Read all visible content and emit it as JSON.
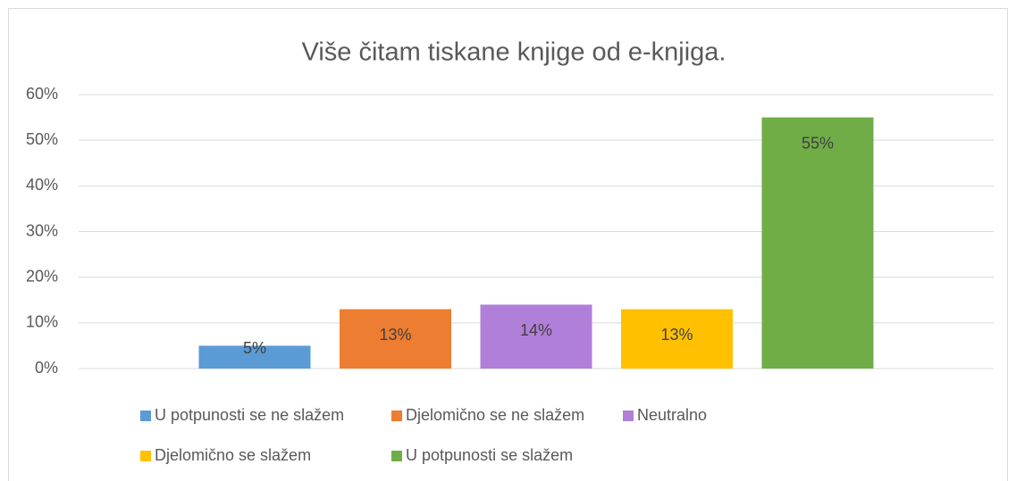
{
  "chart_data": {
    "type": "bar",
    "title": "Više čitam tiskane knjige od e-knjiga.",
    "categories": [
      null
    ],
    "series": [
      {
        "name": "U potpunosti se ne slažem",
        "color": "#5b9bd5",
        "values": [
          5
        ],
        "value_labels": [
          "5%"
        ]
      },
      {
        "name": "Djelomično se ne slažem",
        "color": "#ed7d31",
        "values": [
          13
        ],
        "value_labels": [
          "13%"
        ]
      },
      {
        "name": "Neutralno",
        "color": "#b07fd9",
        "values": [
          14
        ],
        "value_labels": [
          "14%"
        ]
      },
      {
        "name": "Djelomično se slažem",
        "color": "#ffc000",
        "values": [
          13
        ],
        "value_labels": [
          "13%"
        ]
      },
      {
        "name": "U potpunosti se slažem",
        "color": "#70ad47",
        "values": [
          55
        ],
        "value_labels": [
          "55%"
        ]
      }
    ],
    "ylim": [
      0,
      60
    ],
    "yticks": [
      {
        "value": 0,
        "label": "0%"
      },
      {
        "value": 10,
        "label": "10%"
      },
      {
        "value": 20,
        "label": "20%"
      },
      {
        "value": 30,
        "label": "30%"
      },
      {
        "value": 40,
        "label": "40%"
      },
      {
        "value": 50,
        "label": "50%"
      },
      {
        "value": 60,
        "label": "60%"
      }
    ],
    "grid": true,
    "legend": "bottom"
  }
}
